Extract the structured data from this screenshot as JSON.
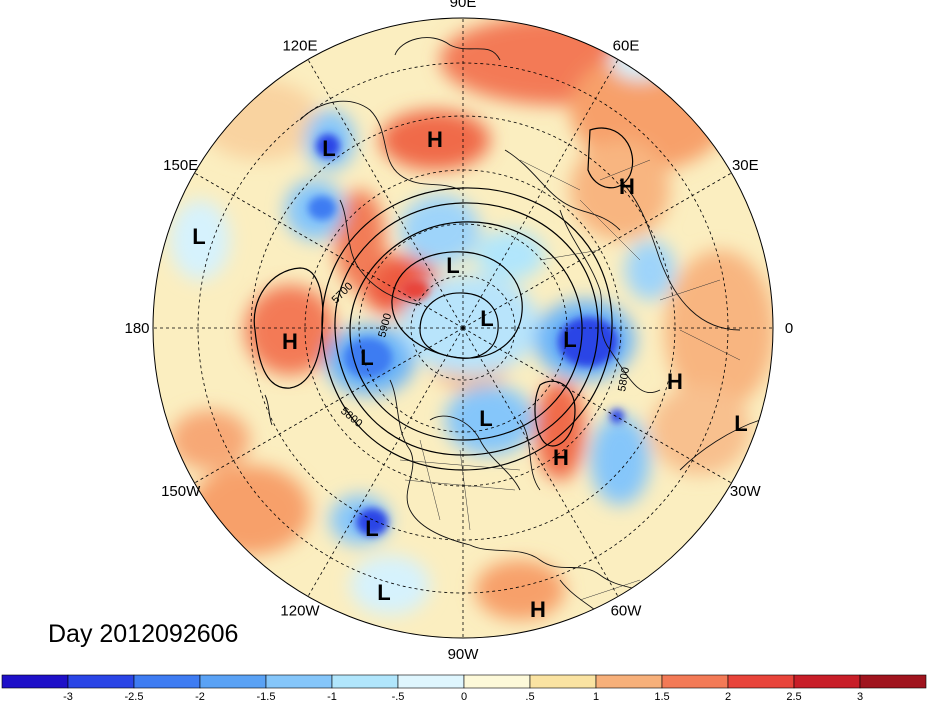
{
  "title": "Day 2012092606",
  "longitude_labels": [
    {
      "text": "90E",
      "angle": 0
    },
    {
      "text": "60E",
      "angle": 30
    },
    {
      "text": "30E",
      "angle": 60
    },
    {
      "text": "0",
      "angle": 90
    },
    {
      "text": "30W",
      "angle": 120
    },
    {
      "text": "60W",
      "angle": 150
    },
    {
      "text": "90W",
      "angle": 180
    },
    {
      "text": "120W",
      "angle": 210
    },
    {
      "text": "150W",
      "angle": 240
    },
    {
      "text": "180",
      "angle": 270
    },
    {
      "text": "150E",
      "angle": 300
    },
    {
      "text": "120E",
      "angle": 330
    }
  ],
  "pressure_centers": [
    {
      "type": "L",
      "label": "L"
    },
    {
      "type": "H",
      "label": "H"
    },
    {
      "type": "H",
      "label": "H"
    },
    {
      "type": "L",
      "label": "L"
    },
    {
      "type": "L",
      "label": "L"
    },
    {
      "type": "L",
      "label": "L"
    },
    {
      "type": "H",
      "label": "H"
    },
    {
      "type": "L",
      "label": "L"
    },
    {
      "type": "L",
      "label": "L"
    },
    {
      "type": "L",
      "label": "L"
    },
    {
      "type": "H",
      "label": "H"
    },
    {
      "type": "L",
      "label": "L"
    },
    {
      "type": "H",
      "label": "H"
    },
    {
      "type": "L",
      "label": "L"
    },
    {
      "type": "L",
      "label": "L"
    },
    {
      "type": "H",
      "label": "H"
    }
  ],
  "contour_labels": [
    "5700",
    "5800",
    "5800",
    "5900"
  ],
  "colorbar": {
    "tick_labels": [
      "-3",
      "-2.5",
      "-2",
      "-1.5",
      "-1",
      "-.5",
      "0",
      ".5",
      "1",
      "1.5",
      "2",
      "2.5",
      "3"
    ],
    "colors": [
      "#1e10c8",
      "#2a45e6",
      "#3e7cf2",
      "#5aa2f5",
      "#85c6fa",
      "#b1e6fc",
      "#dff6fe",
      "#fdf9d9",
      "#fae3a2",
      "#f7b07a",
      "#f37a56",
      "#e8443a",
      "#c81e28",
      "#a0141e"
    ]
  }
}
